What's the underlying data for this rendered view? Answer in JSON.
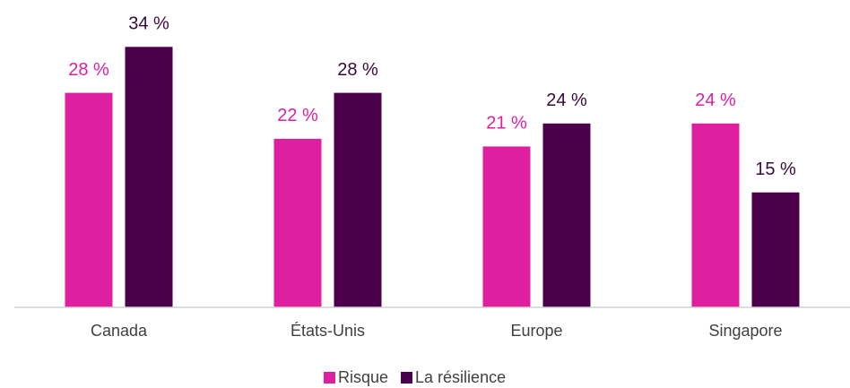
{
  "chart_data": {
    "type": "bar",
    "categories": [
      "Canada",
      "États-Unis",
      "Europe",
      "Singapore"
    ],
    "series": [
      {
        "name": "Risque",
        "color": "#dd1fa0",
        "values": [
          28,
          22,
          21,
          24
        ],
        "value_labels": [
          "28 %",
          "22 %",
          "21 %",
          "24 %"
        ]
      },
      {
        "name": "La résilience",
        "color": "#4b004b",
        "values": [
          34,
          28,
          24,
          15
        ],
        "value_labels": [
          "34 %",
          "28 %",
          "24 %",
          "15 %"
        ]
      }
    ],
    "ylim": [
      0,
      40
    ],
    "grid": false,
    "legend": "bottom"
  }
}
